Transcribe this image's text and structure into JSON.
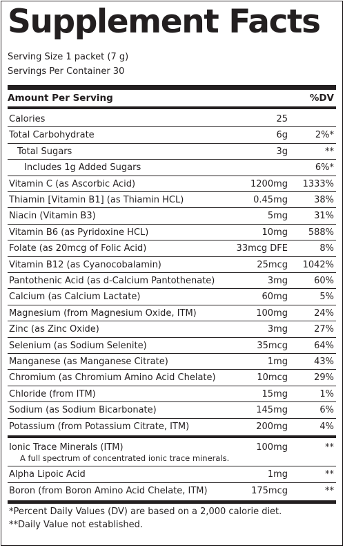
{
  "title": "Supplement Facts",
  "serving_size": "Serving Size 1 packet (7 g)",
  "servings_per_container": "Servings Per Container 30",
  "header": {
    "amount_label": "Amount Per Serving",
    "dv_label": "%DV"
  },
  "nutrients": [
    {
      "name": "Calories",
      "amount": "25",
      "dv": "",
      "indent": 0
    },
    {
      "name": "Total Carbohydrate",
      "amount": "6g",
      "dv": "2%*",
      "indent": 0
    },
    {
      "name": "Total Sugars",
      "amount": "3g",
      "dv": "**",
      "indent": 1
    },
    {
      "name": "Includes 1g Added Sugars",
      "amount": "",
      "dv": "6%*",
      "indent": 2
    },
    {
      "name": "Vitamin C (as Ascorbic Acid)",
      "amount": "1200mg",
      "dv": "1333%",
      "indent": 0
    },
    {
      "name": "Thiamin [Vitamin B1] (as Thiamin HCL)",
      "amount": "0.45mg",
      "dv": "38%",
      "indent": 0
    },
    {
      "name": "Niacin (Vitamin B3)",
      "amount": "5mg",
      "dv": "31%",
      "indent": 0
    },
    {
      "name": "Vitamin B6 (as Pyridoxine HCL)",
      "amount": "10mg",
      "dv": "588%",
      "indent": 0
    },
    {
      "name": "Folate (as 20mcg of Folic Acid)",
      "amount": "33mcg DFE",
      "dv": "8%",
      "indent": 0
    },
    {
      "name": "Vitamin B12 (as Cyanocobalamin)",
      "amount": "25mcg",
      "dv": "1042%",
      "indent": 0
    },
    {
      "name": "Pantothenic Acid (as d-Calcium Pantothenate)",
      "amount": "3mg",
      "dv": "60%",
      "indent": 0
    },
    {
      "name": "Calcium (as Calcium Lactate)",
      "amount": "60mg",
      "dv": "5%",
      "indent": 0
    },
    {
      "name": "Magnesium (from Magnesium Oxide, ITM)",
      "amount": "100mg",
      "dv": "24%",
      "indent": 0
    },
    {
      "name": "Zinc (as Zinc Oxide)",
      "amount": "3mg",
      "dv": "27%",
      "indent": 0
    },
    {
      "name": "Selenium (as Sodium Selenite)",
      "amount": "35mcg",
      "dv": "64%",
      "indent": 0
    },
    {
      "name": "Manganese (as Manganese Citrate)",
      "amount": "1mg",
      "dv": "43%",
      "indent": 0
    },
    {
      "name": "Chromium (as Chromium Amino Acid Chelate)",
      "amount": "10mcg",
      "dv": "29%",
      "indent": 0
    },
    {
      "name": "Chloride (from ITM)",
      "amount": "15mg",
      "dv": "1%",
      "indent": 0
    },
    {
      "name": "Sodium (as Sodium Bicarbonate)",
      "amount": "145mg",
      "dv": "6%",
      "indent": 0
    },
    {
      "name": "Potassium (from Potassium Citrate, ITM)",
      "amount": "200mg",
      "dv": "4%",
      "indent": 0
    }
  ],
  "other": [
    {
      "name": "Ionic Trace Minerals (ITM)",
      "amount": "100mg",
      "dv": "**",
      "note": "A full spectrum of concentrated ionic trace minerals."
    },
    {
      "name": "Alpha Lipoic Acid",
      "amount": "1mg",
      "dv": "**",
      "note": ""
    },
    {
      "name": "Boron (from Boron Amino Acid Chelate, ITM)",
      "amount": "175mcg",
      "dv": "**",
      "note": ""
    }
  ],
  "footnotes": [
    "*Percent Daily Values (DV) are based on a 2,000 calorie diet.",
    "**Daily Value not established."
  ]
}
